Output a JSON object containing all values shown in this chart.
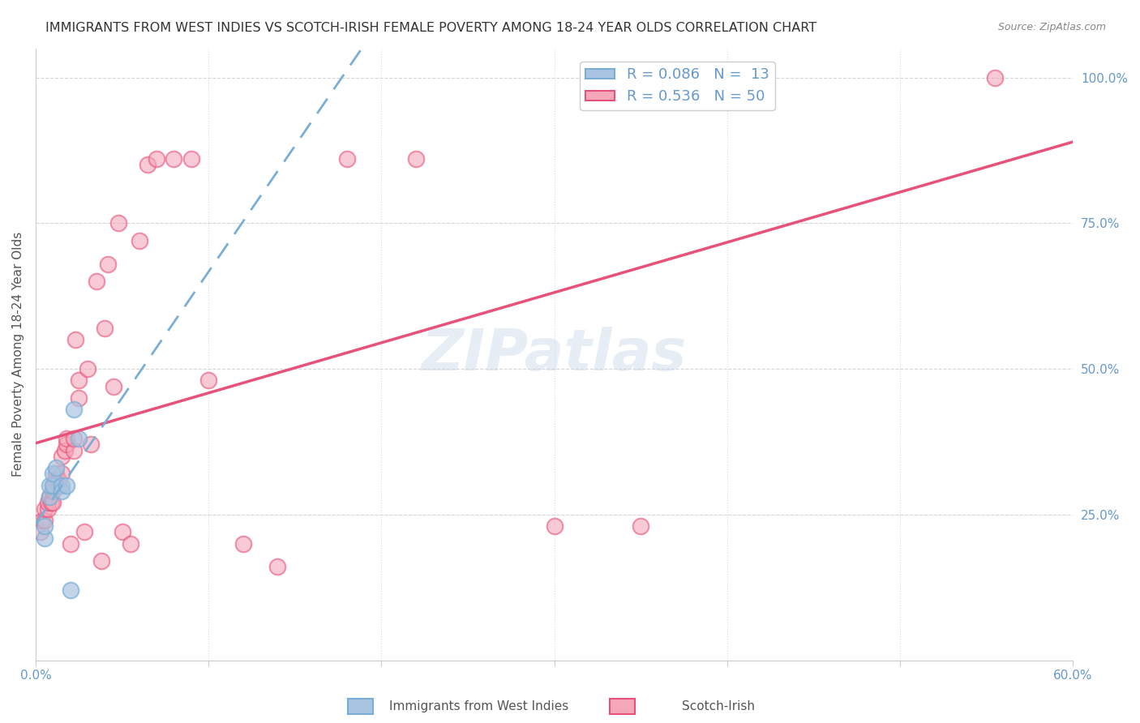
{
  "title": "IMMIGRANTS FROM WEST INDIES VS SCOTCH-IRISH FEMALE POVERTY AMONG 18-24 YEAR OLDS CORRELATION CHART",
  "source": "Source: ZipAtlas.com",
  "xlabel": "",
  "ylabel": "Female Poverty Among 18-24 Year Olds",
  "xlim": [
    0,
    0.6
  ],
  "ylim": [
    0,
    1.05
  ],
  "xticks": [
    0.0,
    0.1,
    0.2,
    0.3,
    0.4,
    0.5,
    0.6
  ],
  "xtick_labels": [
    "0.0%",
    "",
    "",
    "",
    "",
    "",
    "60.0%"
  ],
  "ytick_labels": [
    "",
    "25.0%",
    "50.0%",
    "75.0%",
    "100.0%"
  ],
  "yticks": [
    0,
    0.25,
    0.5,
    0.75,
    1.0
  ],
  "watermark": "ZIPatlas",
  "legend_r1": "R = 0.086",
  "legend_n1": "N =  13",
  "legend_r2": "R = 0.536",
  "legend_n2": "N = 50",
  "color_blue": "#a8c4e0",
  "color_blue_line": "#7aaed6",
  "color_pink": "#f4a7b9",
  "color_pink_line": "#e8527a",
  "color_axis_label": "#6699cc",
  "blue_x": [
    0.005,
    0.005,
    0.008,
    0.008,
    0.01,
    0.01,
    0.012,
    0.015,
    0.015,
    0.018,
    0.02,
    0.022,
    0.025
  ],
  "blue_y": [
    0.21,
    0.23,
    0.28,
    0.3,
    0.3,
    0.32,
    0.33,
    0.3,
    0.29,
    0.3,
    0.12,
    0.43,
    0.38
  ],
  "pink_x": [
    0.003,
    0.004,
    0.005,
    0.005,
    0.007,
    0.007,
    0.008,
    0.009,
    0.01,
    0.01,
    0.011,
    0.012,
    0.012,
    0.013,
    0.013,
    0.015,
    0.015,
    0.017,
    0.018,
    0.018,
    0.02,
    0.022,
    0.022,
    0.023,
    0.025,
    0.025,
    0.028,
    0.03,
    0.032,
    0.035,
    0.038,
    0.04,
    0.042,
    0.045,
    0.048,
    0.05,
    0.055,
    0.06,
    0.065,
    0.07,
    0.08,
    0.09,
    0.1,
    0.12,
    0.14,
    0.18,
    0.22,
    0.3,
    0.35,
    0.555
  ],
  "pink_y": [
    0.22,
    0.24,
    0.24,
    0.26,
    0.26,
    0.27,
    0.28,
    0.27,
    0.27,
    0.29,
    0.3,
    0.31,
    0.32,
    0.3,
    0.31,
    0.32,
    0.35,
    0.36,
    0.37,
    0.38,
    0.2,
    0.36,
    0.38,
    0.55,
    0.45,
    0.48,
    0.22,
    0.5,
    0.37,
    0.65,
    0.17,
    0.57,
    0.68,
    0.47,
    0.75,
    0.22,
    0.2,
    0.72,
    0.85,
    0.86,
    0.86,
    0.86,
    0.48,
    0.2,
    0.16,
    0.86,
    0.86,
    0.23,
    0.23,
    1.0
  ]
}
